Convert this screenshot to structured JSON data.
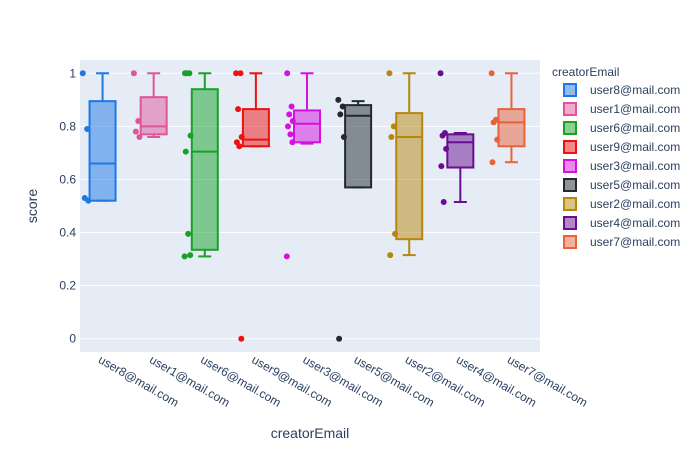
{
  "chart_data": {
    "type": "box",
    "xlabel": "creatorEmail",
    "ylabel": "score",
    "ylim": [
      -0.05,
      1.05
    ],
    "yticks": [
      0,
      0.2,
      0.4,
      0.6,
      0.8,
      1
    ],
    "legend": {
      "title": "creatorEmail",
      "placement": "right"
    },
    "series": [
      {
        "name": "user8@mail.com",
        "color": "#1f77e4",
        "q1": 0.52,
        "median": 0.66,
        "q3": 0.895,
        "lower": 0.52,
        "upper": 1.0,
        "points": [
          1.0,
          0.79,
          0.53,
          0.52
        ]
      },
      {
        "name": "user1@mail.com",
        "color": "#e05599",
        "q1": 0.77,
        "median": 0.8,
        "q3": 0.91,
        "lower": 0.76,
        "upper": 1.0,
        "points": [
          1.0,
          0.82,
          0.78,
          0.76
        ]
      },
      {
        "name": "user6@mail.com",
        "color": "#17a227",
        "q1": 0.335,
        "median": 0.705,
        "q3": 0.94,
        "lower": 0.31,
        "upper": 1.0,
        "points": [
          1.0,
          1.0,
          1.0,
          0.765,
          0.705,
          0.395,
          0.315,
          0.31
        ]
      },
      {
        "name": "user9@mail.com",
        "color": "#ee1111",
        "q1": 0.725,
        "median": 0.75,
        "q3": 0.865,
        "lower": 0.725,
        "upper": 1.0,
        "points": [
          1.0,
          1.0,
          0.865,
          0.76,
          0.74,
          0.725,
          0.0
        ]
      },
      {
        "name": "user3@mail.com",
        "color": "#d611e0",
        "q1": 0.74,
        "median": 0.81,
        "q3": 0.86,
        "lower": 0.735,
        "upper": 1.0,
        "points": [
          1.0,
          0.875,
          0.845,
          0.82,
          0.8,
          0.77,
          0.74,
          0.31
        ]
      },
      {
        "name": "user5@mail.com",
        "color": "#222a30",
        "q1": 0.57,
        "median": 0.84,
        "q3": 0.88,
        "lower": 0.57,
        "upper": 0.895,
        "points": [
          0.9,
          0.875,
          0.845,
          0.76,
          0.0
        ]
      },
      {
        "name": "user2@mail.com",
        "color": "#b8860b",
        "q1": 0.375,
        "median": 0.76,
        "q3": 0.85,
        "lower": 0.315,
        "upper": 1.0,
        "points": [
          1.0,
          0.8,
          0.76,
          0.395,
          0.315
        ]
      },
      {
        "name": "user4@mail.com",
        "color": "#6a0d91",
        "q1": 0.645,
        "median": 0.74,
        "q3": 0.77,
        "lower": 0.515,
        "upper": 0.775,
        "points": [
          1.0,
          0.775,
          0.765,
          0.715,
          0.65,
          0.515
        ]
      },
      {
        "name": "user7@mail.com",
        "color": "#e8623a",
        "q1": 0.725,
        "median": 0.815,
        "q3": 0.865,
        "lower": 0.665,
        "upper": 1.0,
        "points": [
          1.0,
          0.825,
          0.815,
          0.75,
          0.665
        ]
      }
    ]
  }
}
